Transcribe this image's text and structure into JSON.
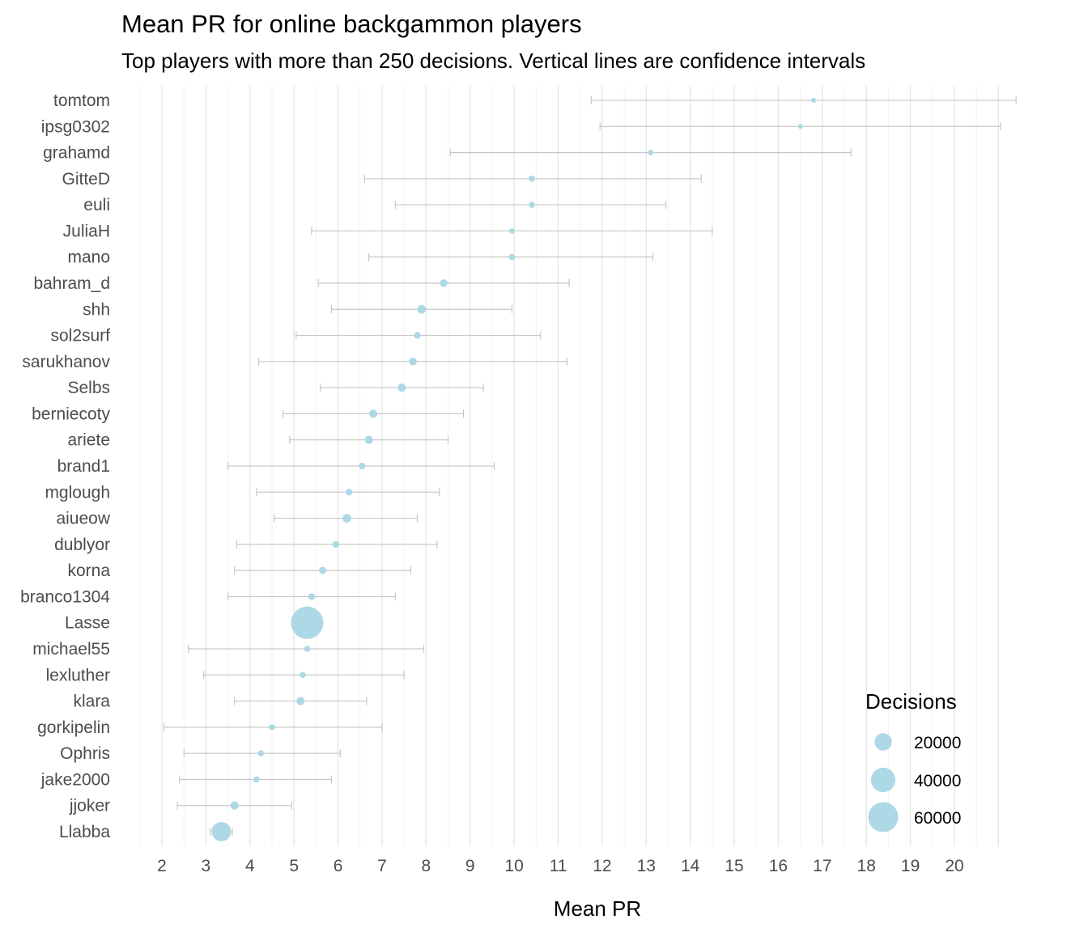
{
  "chart_data": {
    "type": "scatter",
    "title": "Mean PR for online backgammon players",
    "subtitle": "Top players with more than 250 decisions. Vertical lines are confidence intervals",
    "xlabel": "Mean PR",
    "ylabel": "",
    "xlim": [
      1.5,
      21.1
    ],
    "x_ticks": [
      2,
      3,
      4,
      5,
      6,
      7,
      8,
      9,
      10,
      11,
      12,
      13,
      14,
      15,
      16,
      17,
      18,
      19,
      20
    ],
    "grid": "vertical",
    "legend_position": "bottom-right",
    "point_color": "#add8e6",
    "interval_color": "#bebebe",
    "legend": {
      "title": "Decisions",
      "entries": [
        {
          "label": "20000",
          "value": 20000
        },
        {
          "label": "40000",
          "value": 40000
        },
        {
          "label": "60000",
          "value": 60000
        }
      ]
    },
    "players": [
      {
        "name": "tomtom",
        "mean": 16.8,
        "low": 11.75,
        "high": 21.9,
        "decisions": 1500
      },
      {
        "name": "ipsg0302",
        "mean": 16.5,
        "low": 11.95,
        "high": 21.05,
        "decisions": 1500
      },
      {
        "name": "grahamd",
        "mean": 13.1,
        "low": 8.55,
        "high": 17.65,
        "decisions": 2000
      },
      {
        "name": "GitteD",
        "mean": 10.4,
        "low": 6.6,
        "high": 14.25,
        "decisions": 2500
      },
      {
        "name": "euli",
        "mean": 10.4,
        "low": 7.3,
        "high": 13.45,
        "decisions": 2500
      },
      {
        "name": "JuliaH",
        "mean": 9.95,
        "low": 5.4,
        "high": 14.5,
        "decisions": 2000
      },
      {
        "name": "mano",
        "mean": 9.95,
        "low": 6.7,
        "high": 13.15,
        "decisions": 2500
      },
      {
        "name": "bahram_d",
        "mean": 8.4,
        "low": 5.55,
        "high": 11.25,
        "decisions": 4000
      },
      {
        "name": "shh",
        "mean": 7.9,
        "low": 5.85,
        "high": 9.95,
        "decisions": 5000
      },
      {
        "name": "sol2surf",
        "mean": 7.8,
        "low": 5.05,
        "high": 10.6,
        "decisions": 3000
      },
      {
        "name": "sarukhanov",
        "mean": 7.7,
        "low": 4.2,
        "high": 11.2,
        "decisions": 4000
      },
      {
        "name": "Selbs",
        "mean": 7.45,
        "low": 5.6,
        "high": 9.3,
        "decisions": 4500
      },
      {
        "name": "berniecoty",
        "mean": 6.8,
        "low": 4.75,
        "high": 8.85,
        "decisions": 4500
      },
      {
        "name": "ariete",
        "mean": 6.7,
        "low": 4.9,
        "high": 8.5,
        "decisions": 4500
      },
      {
        "name": "brand1",
        "mean": 6.55,
        "low": 3.5,
        "high": 9.55,
        "decisions": 3000
      },
      {
        "name": "mglough",
        "mean": 6.25,
        "low": 4.15,
        "high": 8.3,
        "decisions": 3000
      },
      {
        "name": "aiueow",
        "mean": 6.2,
        "low": 4.55,
        "high": 7.8,
        "decisions": 5000
      },
      {
        "name": "dublyor",
        "mean": 5.95,
        "low": 3.7,
        "high": 8.25,
        "decisions": 3000
      },
      {
        "name": "korna",
        "mean": 5.65,
        "low": 3.65,
        "high": 7.65,
        "decisions": 3500
      },
      {
        "name": "branco1304",
        "mean": 5.4,
        "low": 3.5,
        "high": 7.3,
        "decisions": 3000
      },
      {
        "name": "Lasse",
        "mean": 5.3,
        "low": 5.1,
        "high": 5.5,
        "decisions": 70000
      },
      {
        "name": "michael55",
        "mean": 5.3,
        "low": 2.6,
        "high": 7.95,
        "decisions": 2500
      },
      {
        "name": "lexluther",
        "mean": 5.2,
        "low": 2.95,
        "high": 7.5,
        "decisions": 2500
      },
      {
        "name": "klara",
        "mean": 5.15,
        "low": 3.65,
        "high": 6.65,
        "decisions": 4500
      },
      {
        "name": "gorkipelin",
        "mean": 4.5,
        "low": 2.05,
        "high": 7.0,
        "decisions": 2500
      },
      {
        "name": "Ophris",
        "mean": 4.25,
        "low": 2.5,
        "high": 6.05,
        "decisions": 2500
      },
      {
        "name": "jake2000",
        "mean": 4.15,
        "low": 2.4,
        "high": 5.85,
        "decisions": 2500
      },
      {
        "name": "jjoker",
        "mean": 3.65,
        "low": 2.35,
        "high": 4.95,
        "decisions": 4500
      },
      {
        "name": "Llabba",
        "mean": 3.35,
        "low": 3.1,
        "high": 3.6,
        "decisions": 25000
      }
    ]
  }
}
